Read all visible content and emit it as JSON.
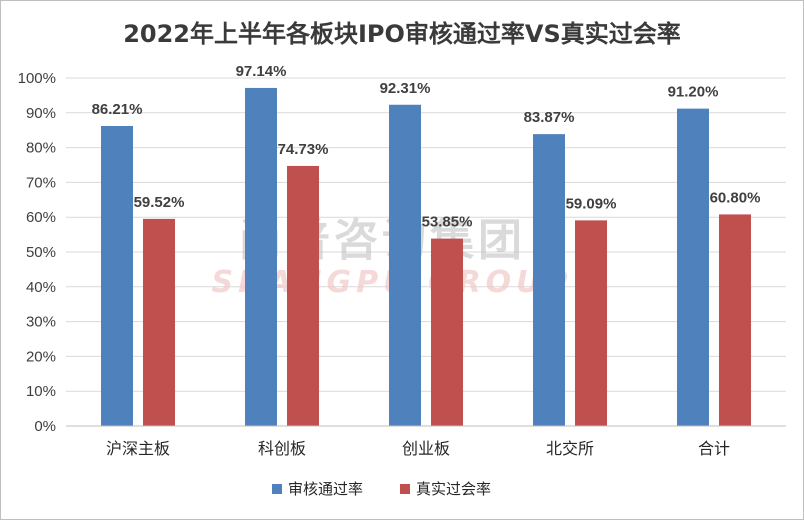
{
  "chart_data": {
    "type": "bar",
    "title": "2022年上半年各板块IPO审核通过率VS真实过会率",
    "categories": [
      "沪深主板",
      "科创板",
      "创业板",
      "北交所",
      "合计"
    ],
    "series": [
      {
        "name": "审核通过率",
        "color": "#4f81bd",
        "values": [
          86.21,
          97.14,
          92.31,
          83.87,
          91.2
        ],
        "labels": [
          "86.21%",
          "97.14%",
          "92.31%",
          "83.87%",
          "91.20%"
        ]
      },
      {
        "name": "真实过会率",
        "color": "#c0504d",
        "values": [
          59.52,
          74.73,
          53.85,
          59.09,
          60.8
        ],
        "labels": [
          "59.52%",
          "74.73%",
          "53.85%",
          "59.09%",
          "60.80%"
        ]
      }
    ],
    "yticks": [
      "0%",
      "10%",
      "20%",
      "30%",
      "40%",
      "50%",
      "60%",
      "70%",
      "80%",
      "90%",
      "100%"
    ],
    "ylim": [
      0,
      100
    ],
    "grid": true,
    "legend_position": "bottom",
    "watermark": {
      "cn": "尚普咨询集团",
      "en": "SHANGPU GROUP"
    }
  }
}
